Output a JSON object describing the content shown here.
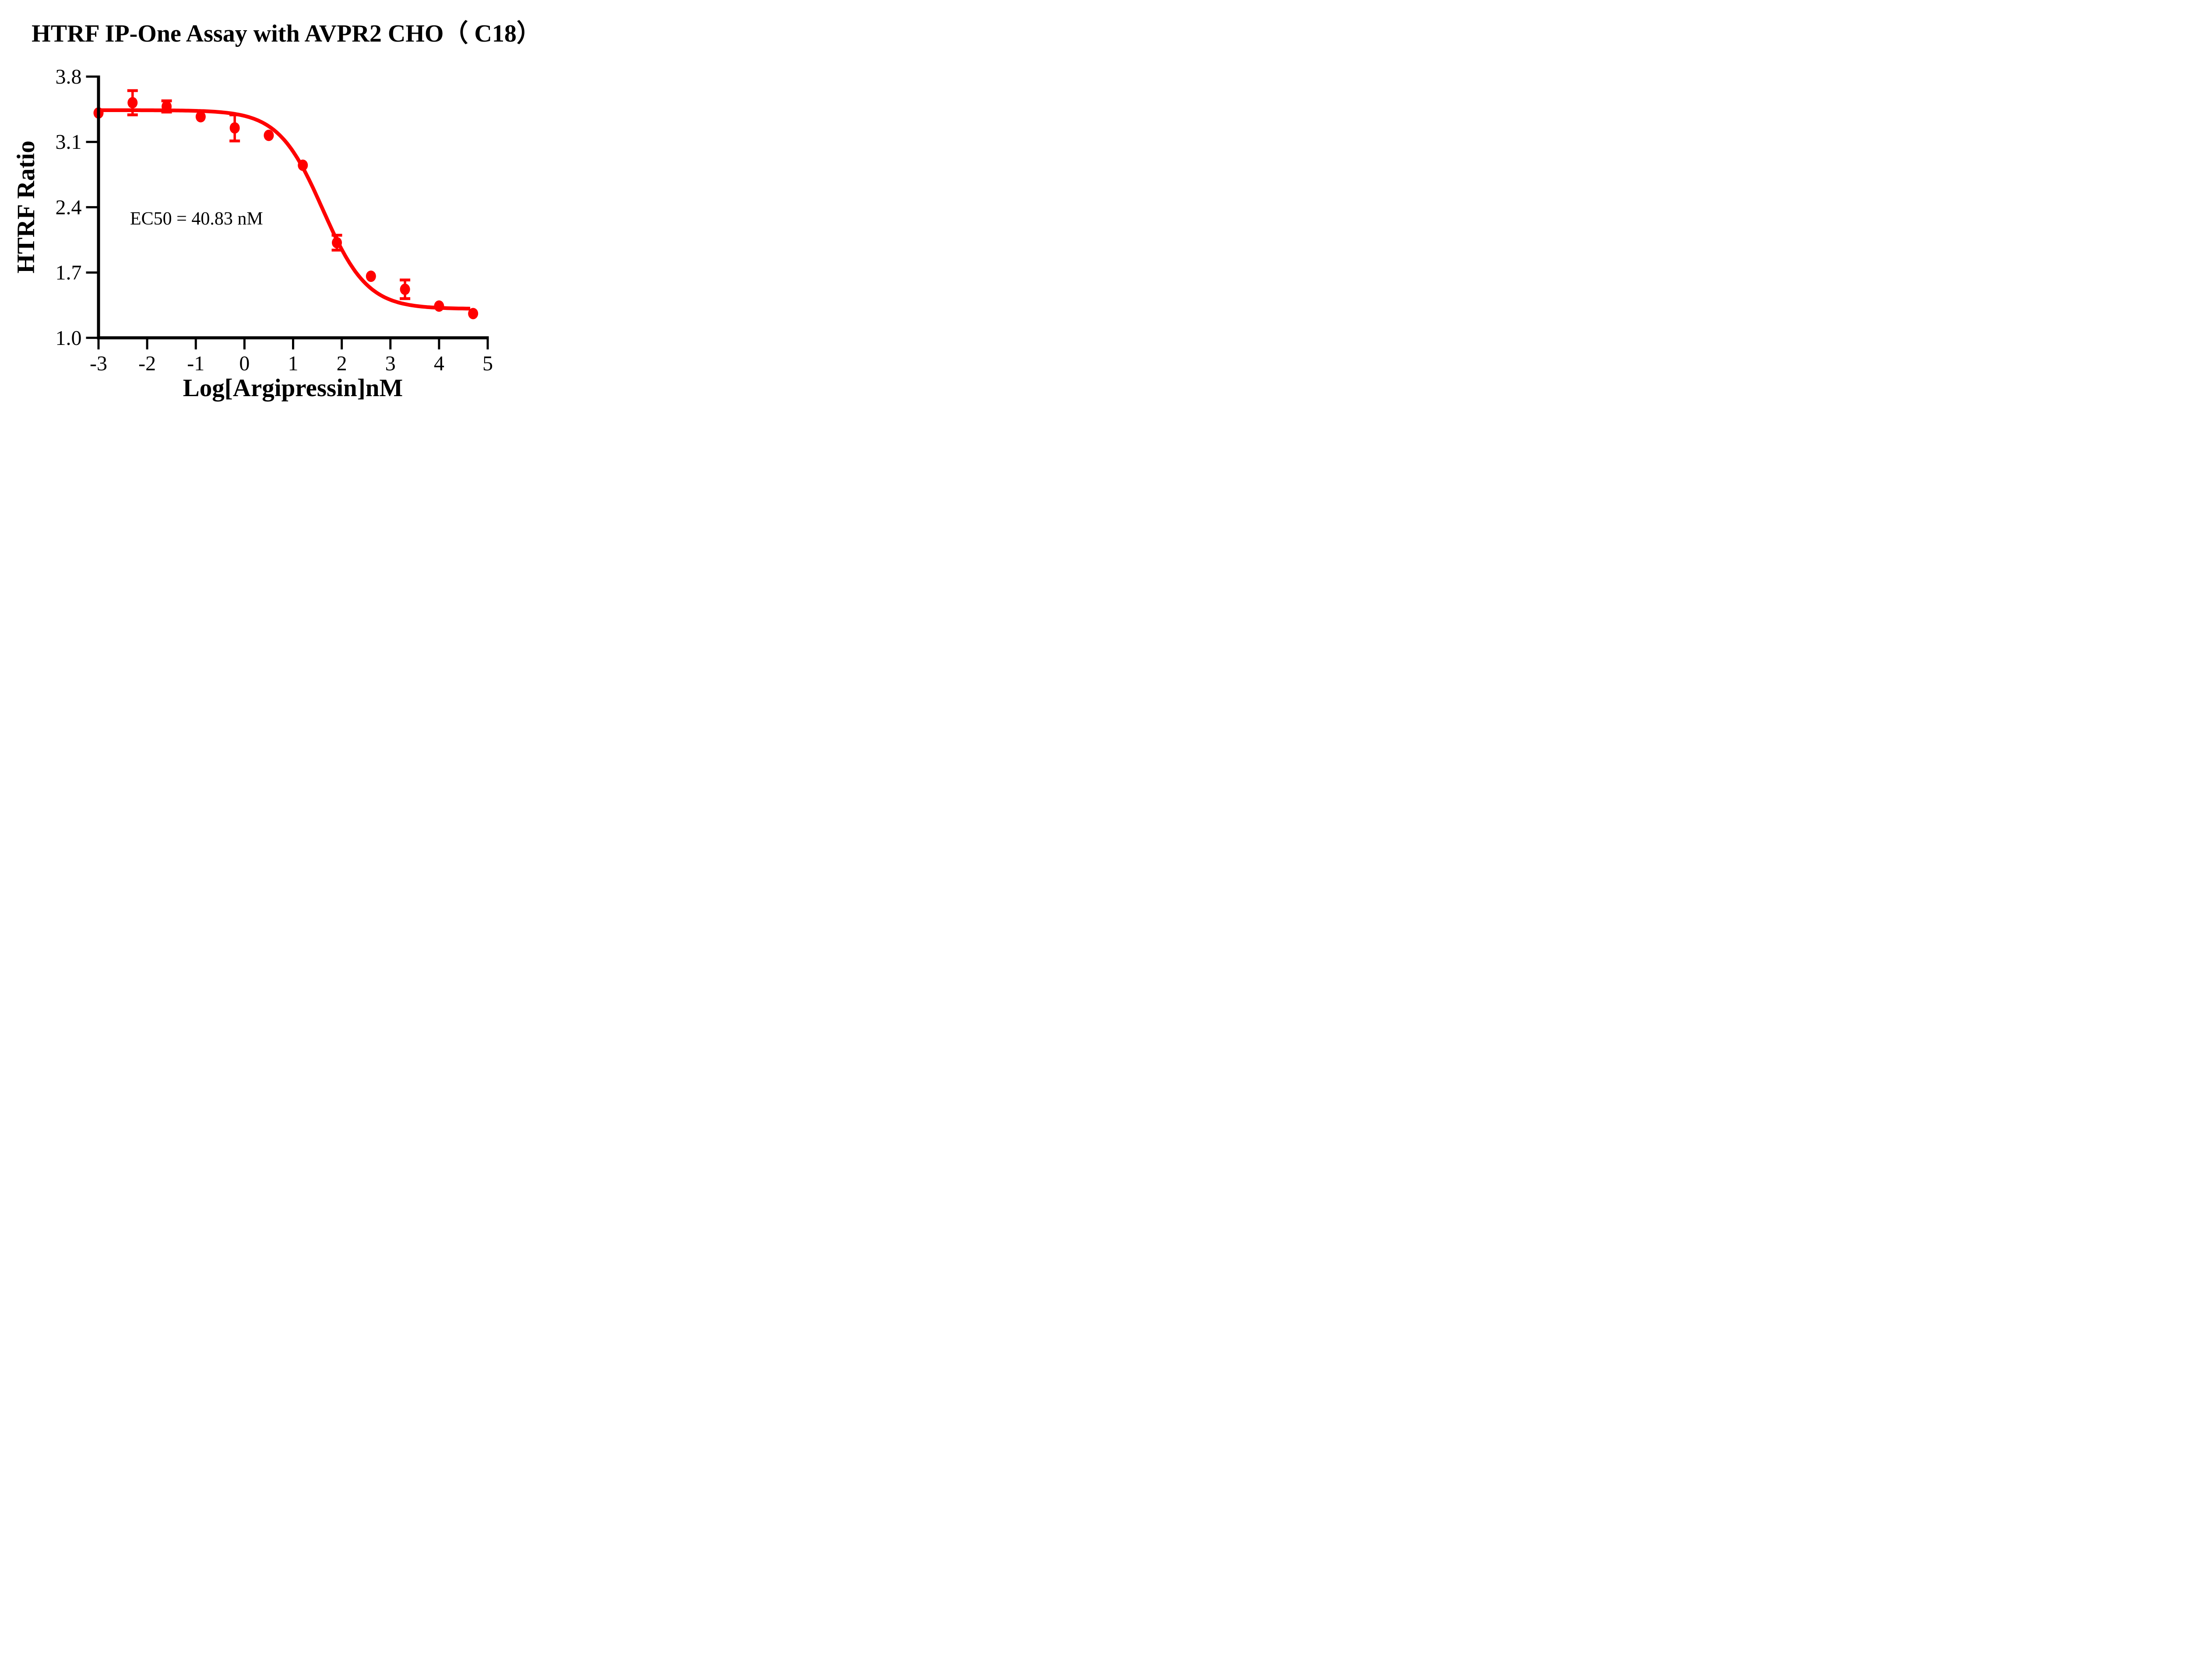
{
  "title": "HTRF IP-One Assay with AVPR2 CHO（ C18）",
  "annotation": {
    "text": "EC50 = 40.83 nM"
  },
  "colors": {
    "series": "#FF0000",
    "axis": "#000000",
    "background": "#FFFFFF"
  },
  "chart_data": {
    "type": "scatter",
    "subtype": "dose-response with sigmoidal fit curve and error bars",
    "title": "HTRF IP-One Assay with AVPR2 CHO（ C18）",
    "xlabel": "Log[Argipressin]nM",
    "ylabel": "HTRF Ratio",
    "xlim": [
      -3,
      5
    ],
    "ylim": [
      1.0,
      3.8
    ],
    "grid": false,
    "legend": "none",
    "xticks": [
      {
        "value": -3,
        "label": "-3"
      },
      {
        "value": -2,
        "label": "-2"
      },
      {
        "value": -1,
        "label": "-1"
      },
      {
        "value": 0,
        "label": "0"
      },
      {
        "value": 1,
        "label": "1"
      },
      {
        "value": 2,
        "label": "2"
      },
      {
        "value": 3,
        "label": "3"
      },
      {
        "value": 4,
        "label": "4"
      },
      {
        "value": 5,
        "label": "5"
      }
    ],
    "yticks": [
      {
        "value": 3.8,
        "label": "3.8"
      },
      {
        "value": 3.1,
        "label": "3.1"
      },
      {
        "value": 2.4,
        "label": "2.4"
      },
      {
        "value": 1.7,
        "label": "1.7"
      },
      {
        "value": 1.0,
        "label": "1.0"
      }
    ],
    "series": [
      {
        "name": "Argipressin",
        "color": "#FF0000",
        "points": [
          {
            "x": -3.0,
            "y": 3.41,
            "err": 0
          },
          {
            "x": -2.3,
            "y": 3.52,
            "err": 0.13
          },
          {
            "x": -1.6,
            "y": 3.48,
            "err": 0.06
          },
          {
            "x": -0.9,
            "y": 3.37,
            "err": 0
          },
          {
            "x": -0.2,
            "y": 3.25,
            "err": 0.14
          },
          {
            "x": 0.5,
            "y": 3.17,
            "err": 0
          },
          {
            "x": 1.2,
            "y": 2.85,
            "err": 0
          },
          {
            "x": 1.9,
            "y": 2.02,
            "err": 0.08
          },
          {
            "x": 2.6,
            "y": 1.66,
            "err": 0
          },
          {
            "x": 3.3,
            "y": 1.52,
            "err": 0.1
          },
          {
            "x": 4.0,
            "y": 1.34,
            "err": 0
          },
          {
            "x": 4.7,
            "y": 1.26,
            "err": 0
          }
        ]
      }
    ],
    "fit_curve": {
      "model": "4PL sigmoid (decreasing)",
      "top": 3.44,
      "bottom": 1.31,
      "log_ec50": 1.611,
      "hill": 0.95,
      "x_start": -3.0,
      "x_end": 4.66
    },
    "annotations": [
      "EC50 = 40.83 nM"
    ]
  }
}
